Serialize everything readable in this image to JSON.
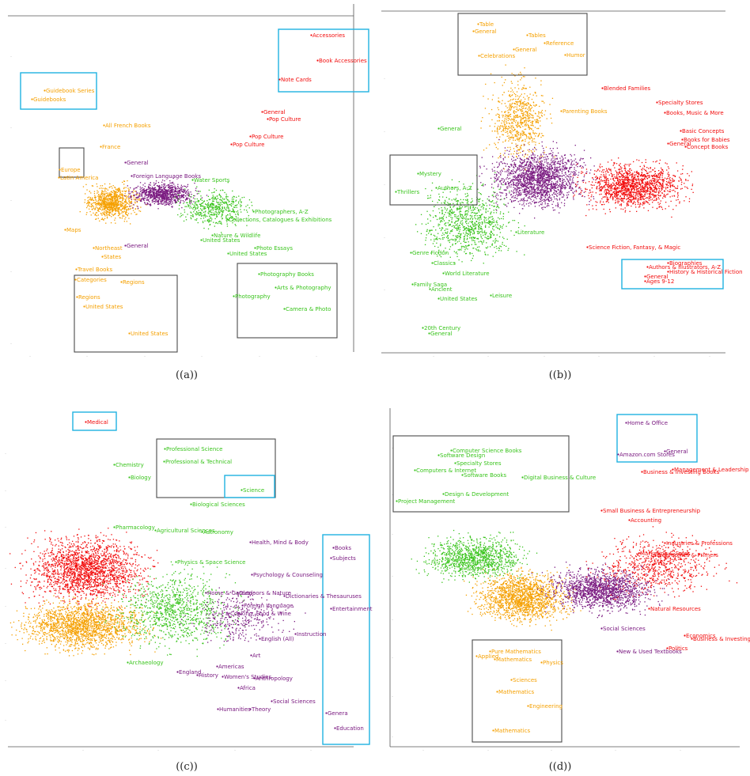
{
  "colors": {
    "orange": "#f5a000",
    "purple": "#7a1a80",
    "green": "#39c41c",
    "red": "#f20d0d",
    "box_dark": "#4a4a4a",
    "box_cyan": "#1fb2e0"
  },
  "chart_data": [
    {
      "type": "scatter",
      "panel_label": "((a))",
      "labels": [
        {
          "text": "Accessories",
          "color": "red"
        },
        {
          "text": "Book Accessories",
          "color": "red"
        },
        {
          "text": "Note Cards",
          "color": "red"
        },
        {
          "text": "Guidebook Series",
          "color": "orange"
        },
        {
          "text": "Guidebooks",
          "color": "orange"
        },
        {
          "text": "General",
          "color": "red"
        },
        {
          "text": "Pop Culture",
          "color": "red"
        },
        {
          "text": "Pop Culture",
          "color": "red"
        },
        {
          "text": "Pop Culture",
          "color": "red"
        },
        {
          "text": "All French Books",
          "color": "orange"
        },
        {
          "text": "France",
          "color": "orange"
        },
        {
          "text": "Europe",
          "color": "orange"
        },
        {
          "text": "Latin America",
          "color": "orange"
        },
        {
          "text": "General",
          "color": "purple"
        },
        {
          "text": "Foreign Language Books",
          "color": "purple"
        },
        {
          "text": "Water Sports",
          "color": "green"
        },
        {
          "text": "Maps",
          "color": "orange"
        },
        {
          "text": "Northeast",
          "color": "orange"
        },
        {
          "text": "States",
          "color": "orange"
        },
        {
          "text": "General",
          "color": "purple"
        },
        {
          "text": "Nature & Wildlife",
          "color": "green"
        },
        {
          "text": "United States",
          "color": "green"
        },
        {
          "text": "Photo Essays",
          "color": "green"
        },
        {
          "text": "United States",
          "color": "green"
        },
        {
          "text": "Travel Books",
          "color": "orange"
        },
        {
          "text": "Categories",
          "color": "orange"
        },
        {
          "text": "Regions",
          "color": "orange"
        },
        {
          "text": "Regions",
          "color": "orange"
        },
        {
          "text": "United States",
          "color": "orange"
        },
        {
          "text": "United States",
          "color": "orange"
        },
        {
          "text": "Photography Books",
          "color": "green"
        },
        {
          "text": "Arts & Photography",
          "color": "green"
        },
        {
          "text": "Photography",
          "color": "green"
        },
        {
          "text": "Camera & Photo",
          "color": "green"
        },
        {
          "text": "Collections, Catalogues & Exhibitions",
          "color": "green"
        },
        {
          "text": "Photographers, A-Z",
          "color": "green"
        }
      ]
    },
    {
      "type": "scatter",
      "panel_label": "((b))",
      "labels": [
        {
          "text": "Table",
          "color": "orange"
        },
        {
          "text": "General",
          "color": "orange"
        },
        {
          "text": "Tables",
          "color": "orange"
        },
        {
          "text": "Reference",
          "color": "orange"
        },
        {
          "text": "General",
          "color": "orange"
        },
        {
          "text": "Humor",
          "color": "orange"
        },
        {
          "text": "Celebrations",
          "color": "orange"
        },
        {
          "text": "Parenting Books",
          "color": "orange"
        },
        {
          "text": "Blended Families",
          "color": "red"
        },
        {
          "text": "Specialty Stores",
          "color": "red"
        },
        {
          "text": "Books, Music & More",
          "color": "red"
        },
        {
          "text": "Basic Concepts",
          "color": "red"
        },
        {
          "text": "Books for Babies",
          "color": "red"
        },
        {
          "text": "Concept Books",
          "color": "red"
        },
        {
          "text": "General",
          "color": "red"
        },
        {
          "text": "Biographies",
          "color": "red"
        },
        {
          "text": "Science Fiction, Fantasy, & Magic",
          "color": "red"
        },
        {
          "text": "General",
          "color": "green"
        },
        {
          "text": "Mystery",
          "color": "green"
        },
        {
          "text": "Thrillers",
          "color": "green"
        },
        {
          "text": "Authors, A-Z",
          "color": "green"
        },
        {
          "text": "Classics",
          "color": "green"
        },
        {
          "text": "World Literature",
          "color": "green"
        },
        {
          "text": "Genre Fiction",
          "color": "green"
        },
        {
          "text": "Family Saga",
          "color": "green"
        },
        {
          "text": "United States",
          "color": "green"
        },
        {
          "text": "Literature",
          "color": "green"
        },
        {
          "text": "Ancient",
          "color": "green"
        },
        {
          "text": "Leisure",
          "color": "green"
        },
        {
          "text": "20th Century",
          "color": "green"
        },
        {
          "text": "General",
          "color": "green"
        },
        {
          "text": "Authors & Illustrators, A-Z",
          "color": "red"
        },
        {
          "text": "History & Historical Fiction",
          "color": "red"
        },
        {
          "text": "General",
          "color": "red"
        },
        {
          "text": "Ages 9-12",
          "color": "red"
        }
      ]
    },
    {
      "type": "scatter",
      "panel_label": "((c))",
      "labels": [
        {
          "text": "Medical",
          "color": "red"
        },
        {
          "text": "Professional Science",
          "color": "green"
        },
        {
          "text": "Professional & Technical",
          "color": "green"
        },
        {
          "text": "Science",
          "color": "green"
        },
        {
          "text": "Chemistry",
          "color": "green"
        },
        {
          "text": "Biology",
          "color": "green"
        },
        {
          "text": "Biological Sciences",
          "color": "green"
        },
        {
          "text": "Astronomy",
          "color": "green"
        },
        {
          "text": "Pharmacology",
          "color": "green"
        },
        {
          "text": "Physics & Space Science",
          "color": "green"
        },
        {
          "text": "Agricultural Sciences",
          "color": "green"
        },
        {
          "text": "Health, Mind & Body",
          "color": "purple"
        },
        {
          "text": "Books",
          "color": "purple"
        },
        {
          "text": "Subjects",
          "color": "purple"
        },
        {
          "text": "Psychology & Counseling",
          "color": "purple"
        },
        {
          "text": "Dictionaries & Thesauruses",
          "color": "purple"
        },
        {
          "text": "Entertainment",
          "color": "purple"
        },
        {
          "text": "Home & Garden",
          "color": "purple"
        },
        {
          "text": "Outdoors & Nature",
          "color": "purple"
        },
        {
          "text": "Foreign Language",
          "color": "purple"
        },
        {
          "text": "Cooking, Food & Wine",
          "color": "purple"
        },
        {
          "text": "English (All)",
          "color": "purple"
        },
        {
          "text": "Instruction",
          "color": "purple"
        },
        {
          "text": "Archaeology",
          "color": "green"
        },
        {
          "text": "England",
          "color": "purple"
        },
        {
          "text": "History",
          "color": "purple"
        },
        {
          "text": "Women's Studies",
          "color": "purple"
        },
        {
          "text": "Anthropology",
          "color": "purple"
        },
        {
          "text": "Art",
          "color": "purple"
        },
        {
          "text": "Africa",
          "color": "purple"
        },
        {
          "text": "Social Sciences",
          "color": "purple"
        },
        {
          "text": "Humanities",
          "color": "purple"
        },
        {
          "text": "Theory",
          "color": "purple"
        },
        {
          "text": "Genera",
          "color": "purple"
        },
        {
          "text": "Education",
          "color": "purple"
        },
        {
          "text": "Americas",
          "color": "purple"
        }
      ]
    },
    {
      "type": "scatter",
      "panel_label": "((d))",
      "labels": [
        {
          "text": "Computer Science Books",
          "color": "green"
        },
        {
          "text": "Software Design",
          "color": "green"
        },
        {
          "text": "Specialty Stores",
          "color": "green"
        },
        {
          "text": "Computers & Internet",
          "color": "green"
        },
        {
          "text": "Software Books",
          "color": "green"
        },
        {
          "text": "Digital Business & Culture",
          "color": "green"
        },
        {
          "text": "Design & Development",
          "color": "green"
        },
        {
          "text": "Project Management",
          "color": "green"
        },
        {
          "text": "Home & Office",
          "color": "purple"
        },
        {
          "text": "General",
          "color": "purple"
        },
        {
          "text": "Amazon.com Stores",
          "color": "purple"
        },
        {
          "text": "Business & Investing Books",
          "color": "red"
        },
        {
          "text": "Management & Leadership",
          "color": "red"
        },
        {
          "text": "Small Business & Entrepreneurship",
          "color": "red"
        },
        {
          "text": "Accounting",
          "color": "red"
        },
        {
          "text": "Industries & Professions",
          "color": "red"
        },
        {
          "text": "Marketing & Sales",
          "color": "red"
        },
        {
          "text": "Biographies & Primers",
          "color": "red"
        },
        {
          "text": "Economics",
          "color": "red"
        },
        {
          "text": "Business & Investing",
          "color": "red"
        },
        {
          "text": "Politics",
          "color": "red"
        },
        {
          "text": "Natural Resources",
          "color": "red"
        },
        {
          "text": "Social Sciences",
          "color": "purple"
        },
        {
          "text": "New & Used Textbooks",
          "color": "purple"
        },
        {
          "text": "Pure Mathematics",
          "color": "orange"
        },
        {
          "text": "Applied",
          "color": "orange"
        },
        {
          "text": "Mathematics",
          "color": "orange"
        },
        {
          "text": "Physics",
          "color": "orange"
        },
        {
          "text": "Sciences",
          "color": "orange"
        },
        {
          "text": "Mathematics",
          "color": "orange"
        },
        {
          "text": "Engineering",
          "color": "orange"
        },
        {
          "text": "Mathematics",
          "color": "orange"
        }
      ]
    }
  ]
}
